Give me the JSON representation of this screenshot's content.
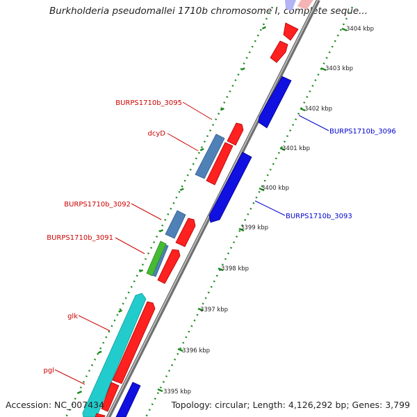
{
  "title": "Burkholderia pseudomallei 1710b chromosome I, complete seque...",
  "footer": {
    "accession": "Accession: NC_007434",
    "summary": "Topology: circular; Length: 4,126,292 bp; Genes: 3,799"
  },
  "ticks": [
    "3404 kbp",
    "3403 kbp",
    "3402 kbp",
    "3401 kbp",
    "3400 kbp",
    "3399 kbp",
    "3398 kbp",
    "3397 kbp",
    "3396 kbp",
    "3395 kbp"
  ],
  "genes": [
    {
      "label": "BURPS1710b_3095",
      "color": "#cc0000"
    },
    {
      "label": "dcyD",
      "color": "#cc0000"
    },
    {
      "label": "BURPS1710b_3092",
      "color": "#cc0000"
    },
    {
      "label": "BURPS1710b_3091",
      "color": "#cc0000"
    },
    {
      "label": "glk",
      "color": "#cc0000"
    },
    {
      "label": "pgl",
      "color": "#cc0000"
    },
    {
      "label": "BURPS1710b_3096",
      "color": "#0000cc"
    },
    {
      "label": "BURPS1710b_3093",
      "color": "#0000cc"
    }
  ],
  "colors": {
    "forward_cds": "#ff2020",
    "reverse_cds": "#1010e0",
    "steelblue_feature": "#4f81b6",
    "cyan_feature": "#22cccc",
    "green_feature": "#44bb33",
    "backbone": "#888888",
    "tick": "#1f8a1f"
  }
}
